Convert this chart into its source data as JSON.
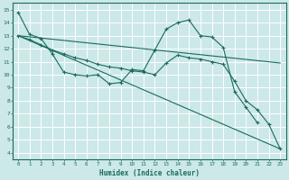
{
  "xlabel": "Humidex (Indice chaleur)",
  "xlim": [
    -0.5,
    23.5
  ],
  "ylim": [
    3.5,
    15.5
  ],
  "xticks": [
    0,
    1,
    2,
    3,
    4,
    5,
    6,
    7,
    8,
    9,
    10,
    11,
    12,
    13,
    14,
    15,
    16,
    17,
    18,
    19,
    20,
    21,
    22,
    23
  ],
  "yticks": [
    4,
    5,
    6,
    7,
    8,
    9,
    10,
    11,
    12,
    13,
    14,
    15
  ],
  "bg_color": "#cce8e8",
  "line_color": "#1a6b5a",
  "grid_color": "#ffffff",
  "line1_x": [
    0,
    1,
    2,
    3,
    4,
    5,
    6,
    7,
    8,
    9,
    10,
    11,
    12,
    13,
    14,
    15,
    16,
    17,
    18,
    19,
    20,
    21
  ],
  "line1_y": [
    14.8,
    13.1,
    12.8,
    11.6,
    10.2,
    10.0,
    9.9,
    10.0,
    9.3,
    9.4,
    10.4,
    10.3,
    11.9,
    13.5,
    14.0,
    14.2,
    13.0,
    12.9,
    12.1,
    8.7,
    7.5,
    6.3
  ],
  "line2_x": [
    0,
    1,
    2,
    3,
    4,
    5,
    6,
    7,
    8,
    9,
    10,
    11,
    12,
    13,
    14,
    15,
    16,
    17,
    18,
    19,
    20,
    21,
    22,
    23
  ],
  "line2_y": [
    13.0,
    12.7,
    12.3,
    11.9,
    11.6,
    11.3,
    11.1,
    10.8,
    10.6,
    10.5,
    10.3,
    10.2,
    10.0,
    10.9,
    11.5,
    11.3,
    11.2,
    11.0,
    10.8,
    9.5,
    8.0,
    7.3,
    6.2,
    4.3
  ],
  "line3_x": [
    0,
    23
  ],
  "line3_y": [
    13.0,
    10.9
  ],
  "line4_x": [
    0,
    23
  ],
  "line4_y": [
    13.0,
    4.3
  ]
}
